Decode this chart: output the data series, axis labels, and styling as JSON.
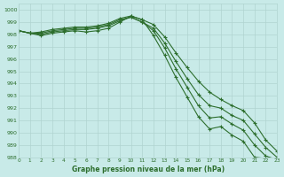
{
  "title": "Graphe pression niveau de la mer (hPa)",
  "background_color": "#c8eae8",
  "grid_color": "#b0d4d0",
  "line_color": "#2d6e2d",
  "xlim": [
    0,
    23
  ],
  "ylim": [
    988,
    1000.5
  ],
  "yticks": [
    988,
    989,
    990,
    991,
    992,
    993,
    994,
    995,
    996,
    997,
    998,
    999,
    1000
  ],
  "xticks": [
    0,
    1,
    2,
    3,
    4,
    5,
    6,
    7,
    8,
    9,
    10,
    11,
    12,
    13,
    14,
    15,
    16,
    17,
    18,
    19,
    20,
    21,
    22,
    23
  ],
  "series": [
    [
      998.3,
      998.1,
      998.2,
      998.4,
      998.5,
      998.6,
      998.6,
      998.7,
      998.9,
      999.3,
      999.5,
      999.2,
      998.8,
      997.8,
      996.5,
      995.3,
      994.2,
      993.3,
      992.7,
      992.2,
      991.8,
      990.8,
      989.4,
      988.5
    ],
    [
      998.3,
      998.1,
      998.1,
      998.3,
      998.4,
      998.5,
      998.5,
      998.6,
      998.8,
      999.2,
      999.4,
      999.0,
      998.5,
      997.3,
      995.8,
      994.4,
      993.1,
      992.2,
      992.0,
      991.4,
      991.0,
      989.9,
      988.8,
      988.0
    ],
    [
      998.3,
      998.1,
      998.0,
      998.2,
      998.3,
      998.4,
      998.4,
      998.5,
      998.7,
      999.1,
      999.4,
      999.0,
      998.3,
      996.9,
      995.2,
      993.7,
      992.2,
      991.2,
      991.3,
      990.7,
      990.2,
      989.0,
      988.1,
      987.8
    ],
    [
      998.3,
      998.1,
      997.9,
      998.1,
      998.2,
      998.3,
      998.2,
      998.3,
      998.5,
      999.0,
      999.5,
      999.2,
      997.9,
      996.3,
      994.5,
      992.9,
      991.3,
      990.3,
      990.5,
      989.8,
      989.3,
      988.0,
      987.9,
      987.7
    ]
  ]
}
